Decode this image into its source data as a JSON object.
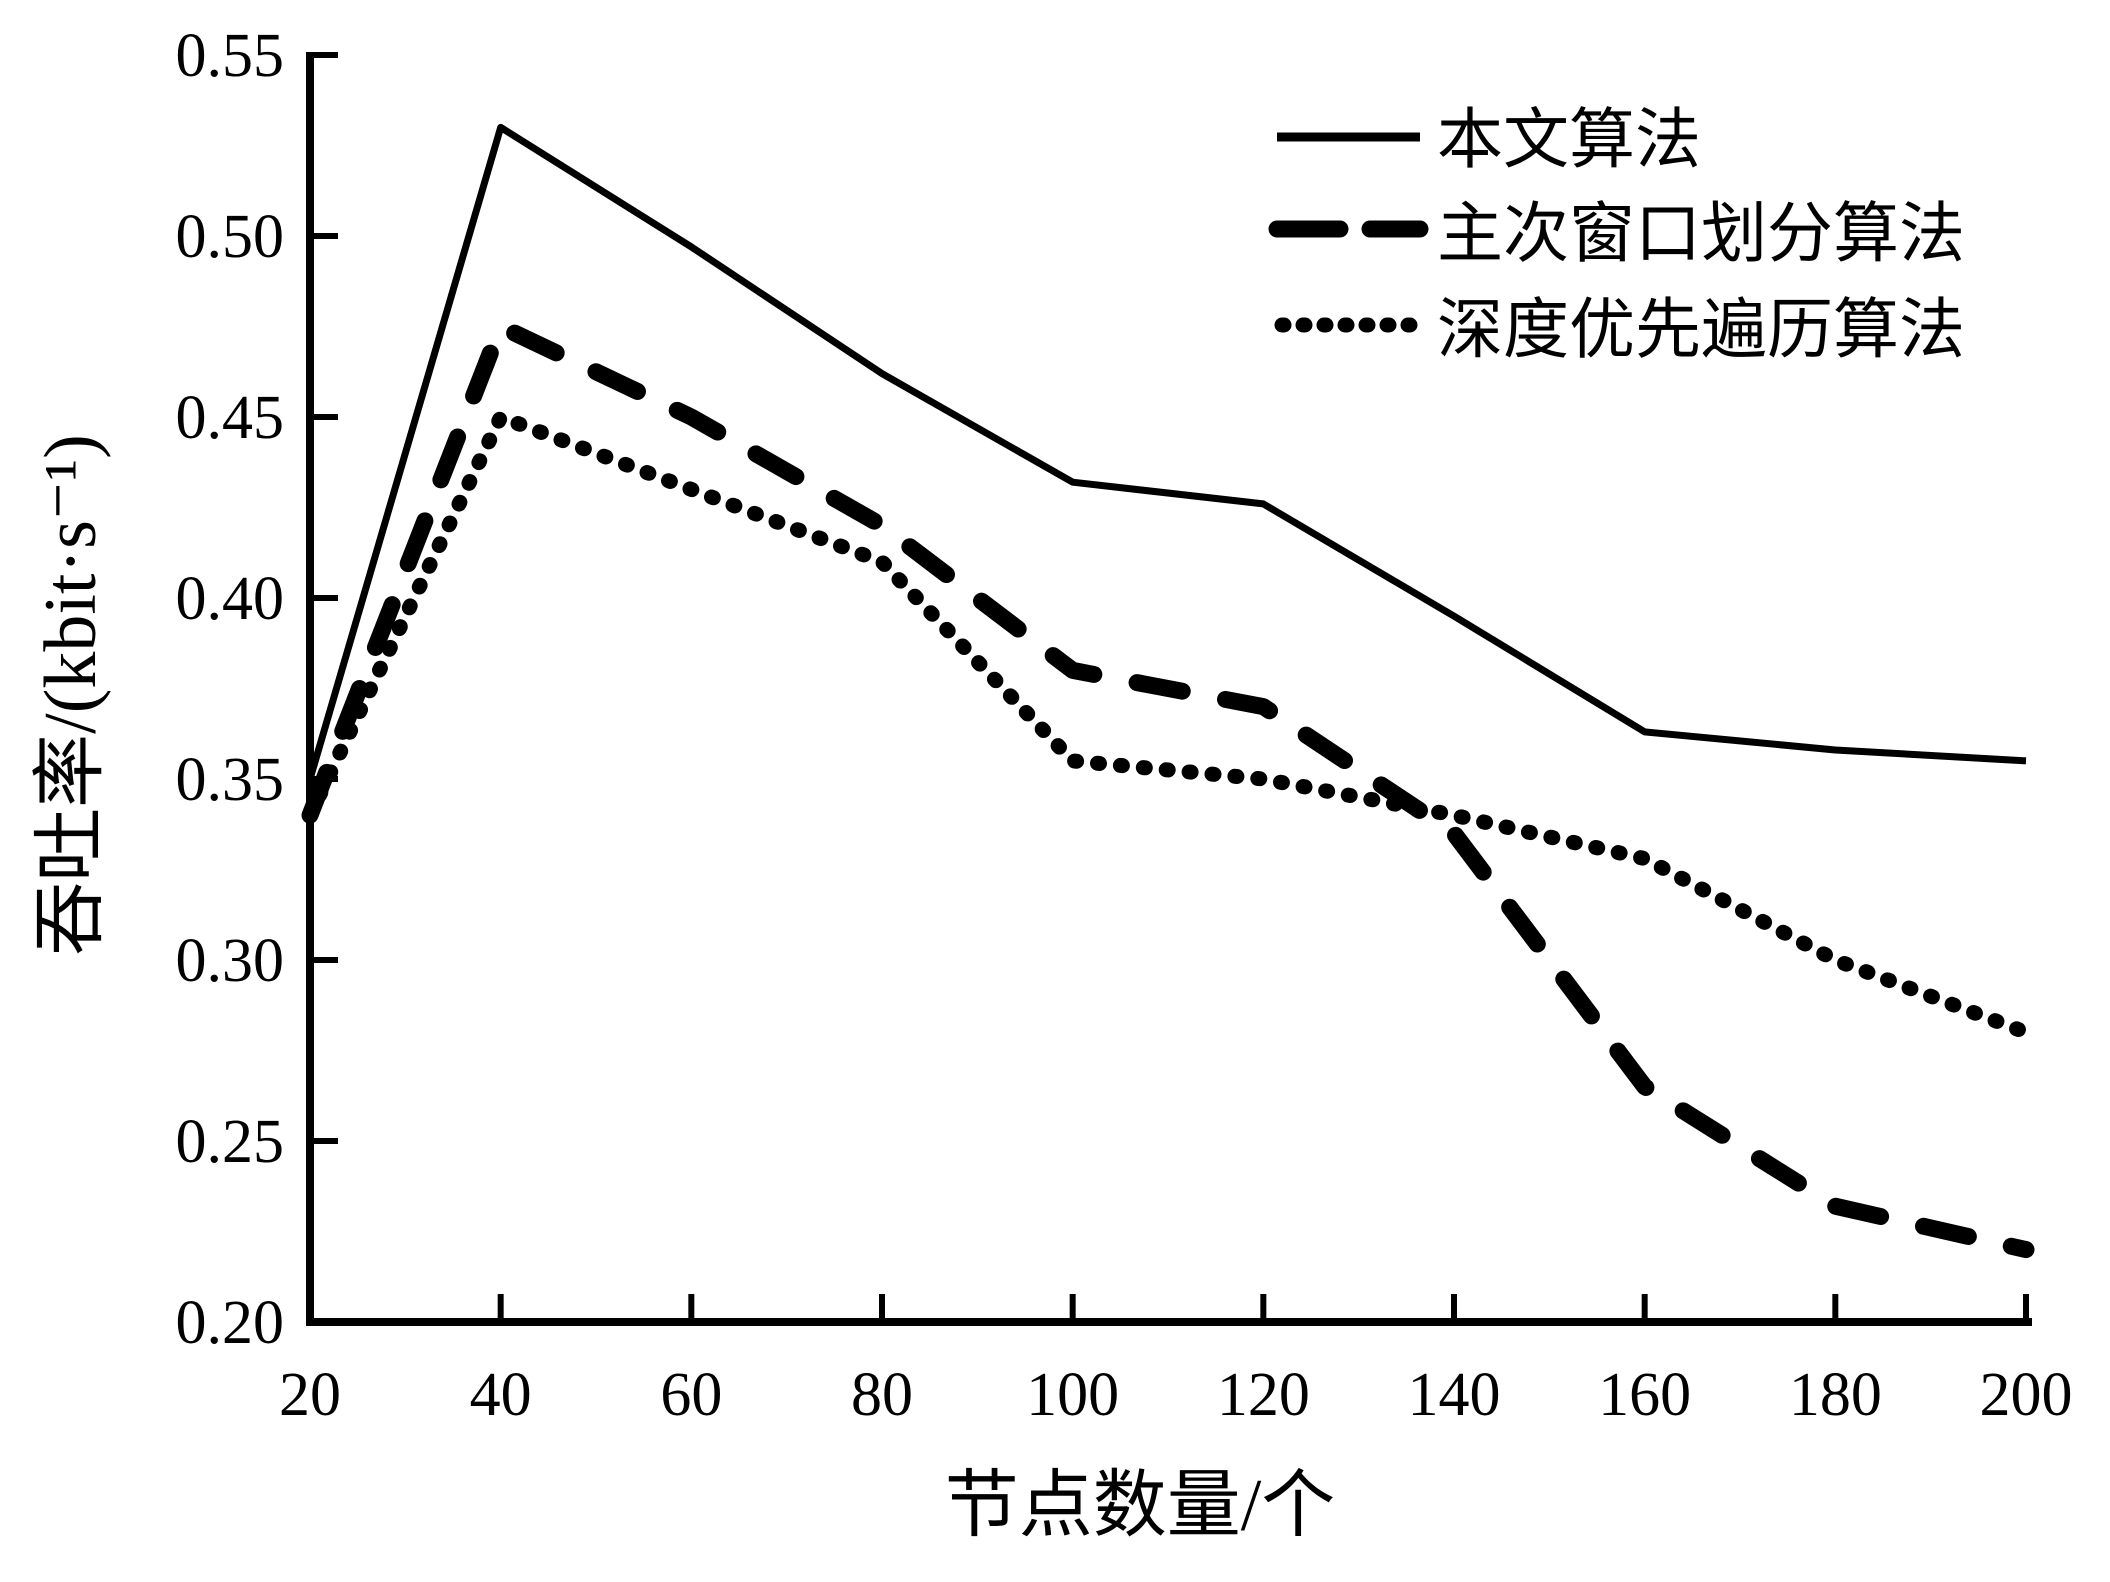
{
  "figure": {
    "background": "#ffffff",
    "ink": "#000000"
  },
  "chart_data": {
    "type": "line",
    "x": [
      20,
      40,
      60,
      80,
      100,
      120,
      140,
      160,
      180,
      200
    ],
    "series": [
      {
        "name": "本文算法",
        "style": "solid",
        "values": [
          0.35,
          0.53,
          0.497,
          0.462,
          0.432,
          0.426,
          0.395,
          0.363,
          0.358,
          0.355
        ]
      },
      {
        "name": "主次窗口划分算法",
        "style": "dashed",
        "values": [
          0.34,
          0.475,
          0.45,
          0.42,
          0.38,
          0.37,
          0.335,
          0.265,
          0.232,
          0.22
        ]
      },
      {
        "name": "深度优先遍历算法",
        "style": "dotted",
        "values": [
          0.34,
          0.45,
          0.43,
          0.41,
          0.355,
          0.35,
          0.34,
          0.328,
          0.3,
          0.28
        ]
      }
    ],
    "xlabel": "节点数量/个",
    "ylabel": "吞吐率/(kbit·s⁻¹)",
    "xlim": [
      20,
      200
    ],
    "ylim": [
      0.2,
      0.55
    ],
    "x_ticks": [
      "20",
      "40",
      "60",
      "80",
      "100",
      "120",
      "140",
      "160",
      "180",
      "200"
    ],
    "y_ticks": [
      "0.55",
      "0.50",
      "0.45",
      "0.40",
      "0.35",
      "0.30",
      "0.25",
      "0.20"
    ],
    "grid": false,
    "legend_position": "upper right",
    "line_color": "#000000"
  }
}
